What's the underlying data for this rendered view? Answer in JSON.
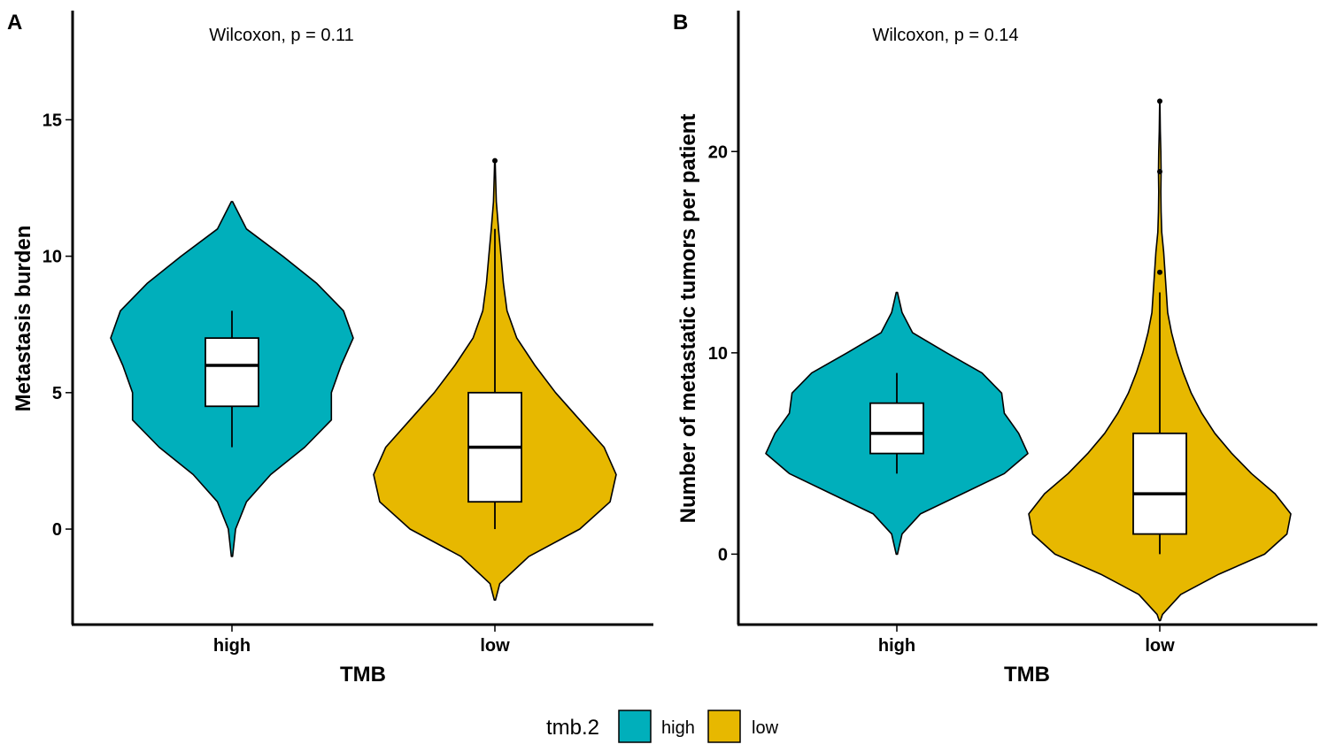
{
  "colors": {
    "high": "#00AFBB",
    "low": "#E7B800",
    "box_fill": "#ffffff",
    "line": "#000000"
  },
  "legend": {
    "title": "tmb.2",
    "position": "bottom",
    "items": [
      {
        "label": "high",
        "color": "#00AFBB"
      },
      {
        "label": "low",
        "color": "#E7B800"
      }
    ]
  },
  "chart_data": [
    {
      "panel_tag": "A",
      "type": "violin",
      "annotation": "Wilcoxon, p = 0.11",
      "xlabel": "TMB",
      "ylabel": "Metastasis burden",
      "categories": [
        "high",
        "low"
      ],
      "ylim": [
        -3.5,
        19
      ],
      "yticks": [
        0,
        5,
        10,
        15
      ],
      "grid": false,
      "series": [
        {
          "category": "high",
          "violin_range": [
            -1,
            12
          ],
          "density": [
            [
              -1,
              0.005
            ],
            [
              0,
              0.03
            ],
            [
              1,
              0.12
            ],
            [
              2,
              0.32
            ],
            [
              3,
              0.6
            ],
            [
              4,
              0.82
            ],
            [
              5,
              0.82
            ],
            [
              6,
              0.9
            ],
            [
              7,
              1.0
            ],
            [
              8,
              0.92
            ],
            [
              9,
              0.7
            ],
            [
              10,
              0.42
            ],
            [
              11,
              0.12
            ],
            [
              12,
              0.005
            ]
          ],
          "box": {
            "whisker_low": 3,
            "q1": 4.5,
            "median": 6,
            "q3": 7,
            "whisker_high": 8
          },
          "outliers": []
        },
        {
          "category": "low",
          "violin_range": [
            -2.6,
            13.5
          ],
          "density": [
            [
              -2.6,
              0.005
            ],
            [
              -2,
              0.04
            ],
            [
              -1,
              0.28
            ],
            [
              0,
              0.7
            ],
            [
              1,
              0.95
            ],
            [
              2,
              1.0
            ],
            [
              3,
              0.9
            ],
            [
              4,
              0.7
            ],
            [
              5,
              0.5
            ],
            [
              6,
              0.33
            ],
            [
              7,
              0.18
            ],
            [
              8,
              0.1
            ],
            [
              9,
              0.07
            ],
            [
              10,
              0.05
            ],
            [
              11,
              0.03
            ],
            [
              12,
              0.012
            ],
            [
              13,
              0.005
            ],
            [
              13.5,
              0.002
            ]
          ],
          "box": {
            "whisker_low": 0,
            "q1": 1,
            "median": 3,
            "q3": 5,
            "whisker_high": 11
          },
          "outliers": [
            13.5
          ]
        }
      ]
    },
    {
      "panel_tag": "B",
      "type": "violin",
      "annotation": "Wilcoxon, p = 0.14",
      "xlabel": "TMB",
      "ylabel": "Number of metastatic tumors per patient",
      "categories": [
        "high",
        "low"
      ],
      "ylim": [
        -3.5,
        27
      ],
      "yticks": [
        0,
        10,
        20
      ],
      "grid": false,
      "series": [
        {
          "category": "high",
          "violin_range": [
            0,
            13
          ],
          "density": [
            [
              0,
              0.005
            ],
            [
              1,
              0.04
            ],
            [
              2,
              0.18
            ],
            [
              3,
              0.5
            ],
            [
              4,
              0.82
            ],
            [
              5,
              1.0
            ],
            [
              6,
              0.93
            ],
            [
              7,
              0.82
            ],
            [
              8,
              0.8
            ],
            [
              9,
              0.65
            ],
            [
              10,
              0.38
            ],
            [
              11,
              0.12
            ],
            [
              12,
              0.04
            ],
            [
              13,
              0.005
            ]
          ],
          "box": {
            "whisker_low": 4,
            "q1": 5,
            "median": 6,
            "q3": 7.5,
            "whisker_high": 9
          },
          "outliers": []
        },
        {
          "category": "low",
          "violin_range": [
            -3.3,
            22.5
          ],
          "density": [
            [
              -3.3,
              0.005
            ],
            [
              -3,
              0.02
            ],
            [
              -2,
              0.16
            ],
            [
              -1,
              0.45
            ],
            [
              0,
              0.8
            ],
            [
              1,
              0.97
            ],
            [
              2,
              1.0
            ],
            [
              3,
              0.88
            ],
            [
              4,
              0.7
            ],
            [
              5,
              0.55
            ],
            [
              6,
              0.42
            ],
            [
              7,
              0.32
            ],
            [
              8,
              0.24
            ],
            [
              9,
              0.18
            ],
            [
              10,
              0.13
            ],
            [
              11,
              0.09
            ],
            [
              12,
              0.06
            ],
            [
              13,
              0.05
            ],
            [
              14,
              0.04
            ],
            [
              15,
              0.03
            ],
            [
              16,
              0.015
            ],
            [
              17,
              0.01
            ],
            [
              18,
              0.008
            ],
            [
              19,
              0.01
            ],
            [
              20,
              0.008
            ],
            [
              21,
              0.004
            ],
            [
              22,
              0.002
            ],
            [
              22.5,
              0.001
            ]
          ],
          "box": {
            "whisker_low": 0,
            "q1": 1,
            "median": 3,
            "q3": 6,
            "whisker_high": 13
          },
          "outliers": [
            14,
            19,
            22.5
          ]
        }
      ]
    }
  ]
}
